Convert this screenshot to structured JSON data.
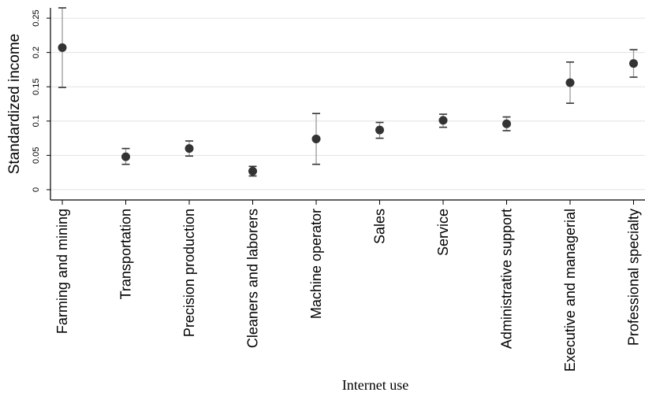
{
  "chart_data": {
    "type": "scatter",
    "title": "",
    "xlabel": "Internet use",
    "ylabel": "Standardized income",
    "categories": [
      "Farming and mining",
      "Transportation",
      "Precision production",
      "Cleaners and laborers",
      "Machine operator",
      "Sales",
      "Service",
      "Administrative support",
      "Executive and managerial",
      "Professional specialty"
    ],
    "values": [
      0.207,
      0.048,
      0.06,
      0.027,
      0.074,
      0.087,
      0.101,
      0.096,
      0.156,
      0.184
    ],
    "ci_low": [
      0.149,
      0.037,
      0.049,
      0.02,
      0.037,
      0.075,
      0.091,
      0.086,
      0.126,
      0.164
    ],
    "ci_high": [
      0.265,
      0.06,
      0.071,
      0.034,
      0.111,
      0.098,
      0.11,
      0.106,
      0.186,
      0.204
    ],
    "ylim": [
      -0.015,
      0.265
    ],
    "yticks": [
      0,
      0.05,
      0.1,
      0.15,
      0.2,
      0.25
    ],
    "ytick_labels": [
      "0",
      "0.05",
      "0.1",
      "0.15",
      "0.2",
      "0.25"
    ],
    "grid": true,
    "legend": "none",
    "colors": {
      "marker": "#333333",
      "errorbar_line": "#9a9a9a",
      "errorbar_cap": "#333333",
      "grid": "#e2e2e2",
      "axis": "#000000"
    }
  }
}
